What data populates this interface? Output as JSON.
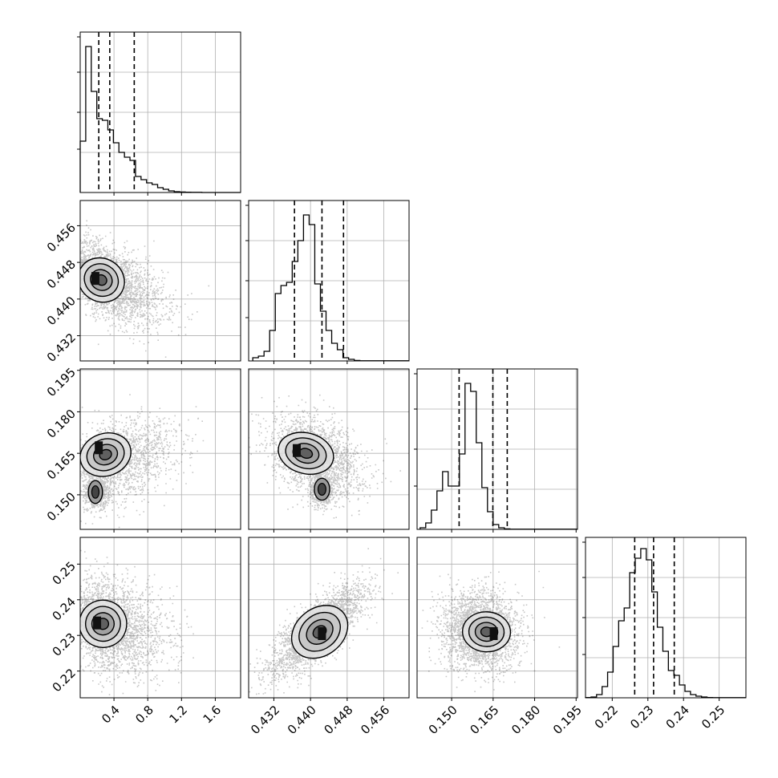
{
  "chart_data": {
    "type": "corner",
    "parameters": [
      {
        "range": [
          0.0,
          1.9
        ],
        "ticks": [
          0.4,
          0.8,
          1.2,
          1.6
        ],
        "tick_labels": [
          "0.4",
          "0.8",
          "1.2",
          "1.6"
        ],
        "quantiles": [
          0.22,
          0.35,
          0.64
        ],
        "hist": {
          "edges_start": 0.0,
          "bin_width": 0.0655,
          "counts": [
            0.32,
            0.91,
            0.63,
            0.46,
            0.45,
            0.39,
            0.31,
            0.25,
            0.22,
            0.2,
            0.1,
            0.08,
            0.06,
            0.05,
            0.03,
            0.02,
            0.01,
            0.005,
            0.003,
            0.002,
            0.001,
            0.001,
            0,
            0,
            0,
            0,
            0,
            0,
            0
          ]
        }
      },
      {
        "range": [
          0.4265,
          0.4615
        ],
        "ticks": [
          0.432,
          0.44,
          0.448,
          0.456
        ],
        "tick_labels": [
          "0.432",
          "0.440",
          "0.448",
          "0.456"
        ],
        "quantiles": [
          0.4365,
          0.4425,
          0.4472
        ],
        "hist": {
          "edges_start": 0.4274,
          "bin_width": 0.00123,
          "counts": [
            0.02,
            0.03,
            0.06,
            0.19,
            0.42,
            0.47,
            0.49,
            0.62,
            0.75,
            0.91,
            0.85,
            0.48,
            0.31,
            0.19,
            0.11,
            0.07,
            0.02,
            0.01,
            0.003,
            0.001,
            0.001,
            0.001,
            0.001,
            0.001,
            0.001,
            0.001,
            0.001,
            0.001,
            0.001
          ]
        }
      },
      {
        "range": [
          0.1375,
          0.1955
        ],
        "ticks": [
          0.15,
          0.165,
          0.18,
          0.195
        ],
        "tick_labels": [
          "0.150",
          "0.165",
          "0.180",
          "0.195"
        ],
        "quantiles": [
          0.1527,
          0.1649,
          0.1701
        ],
        "hist": {
          "edges_start": 0.1386,
          "bin_width": 0.00203,
          "counts": [
            0.01,
            0.04,
            0.12,
            0.24,
            0.36,
            0.27,
            0.27,
            0.47,
            0.91,
            0.86,
            0.54,
            0.26,
            0.11,
            0.03,
            0.01,
            0.003,
            0.001,
            0.001,
            0.001,
            0.001,
            0.001,
            0.001,
            0.001,
            0.001,
            0.001,
            0.001,
            0.001,
            0.001,
            0.001
          ]
        }
      },
      {
        "range": [
          0.2125,
          0.2575
        ],
        "ticks": [
          0.22,
          0.23,
          0.24,
          0.25
        ],
        "tick_labels": [
          "0.22",
          "0.23",
          "0.24",
          "0.25"
        ],
        "quantiles": [
          0.2263,
          0.2316,
          0.2374
        ],
        "hist": {
          "edges_start": 0.2125,
          "bin_width": 0.00155,
          "counts": [
            0.002,
            0.005,
            0.02,
            0.07,
            0.16,
            0.32,
            0.48,
            0.56,
            0.78,
            0.87,
            0.93,
            0.86,
            0.66,
            0.44,
            0.29,
            0.17,
            0.14,
            0.08,
            0.04,
            0.02,
            0.01,
            0.005,
            0.002,
            0.001,
            0.001,
            0.001,
            0.001,
            0.001,
            0.001
          ]
        }
      }
    ],
    "pairs": [
      {
        "row": 1,
        "col": 0,
        "center": [
          0.32,
          0.4438
        ],
        "spread": [
          0.22,
          0.0046
        ],
        "rho": -0.55,
        "mode": [
          0.18,
          0.4445
        ]
      },
      {
        "row": 2,
        "col": 0,
        "center": [
          0.38,
          0.162
        ],
        "spread": [
          0.24,
          0.0075
        ],
        "rho": 0.35,
        "mode": [
          0.22,
          0.167
        ],
        "mode2": [
          0.18,
          0.151
        ]
      },
      {
        "row": 2,
        "col": 1,
        "center": [
          0.441,
          0.164
        ],
        "spread": [
          0.0048,
          0.0072
        ],
        "rho": -0.3,
        "mode": [
          0.437,
          0.166
        ],
        "mode2": [
          0.4425,
          0.152
        ]
      },
      {
        "row": 3,
        "col": 0,
        "center": [
          0.34,
          0.233
        ],
        "spread": [
          0.22,
          0.0065
        ],
        "rho": -0.25,
        "mode": [
          0.2,
          0.2335
        ]
      },
      {
        "row": 3,
        "col": 1,
        "center": [
          0.4415,
          0.2315
        ],
        "spread": [
          0.0052,
          0.0065
        ],
        "rho": 0.8,
        "mode": [
          0.4425,
          0.2305
        ]
      },
      {
        "row": 3,
        "col": 2,
        "center": [
          0.16,
          0.2315
        ],
        "spread": [
          0.0068,
          0.0055
        ],
        "rho": -0.05,
        "mode": [
          0.1652,
          0.2305
        ]
      }
    ],
    "grid": true,
    "xlabel": "",
    "ylabel": ""
  }
}
